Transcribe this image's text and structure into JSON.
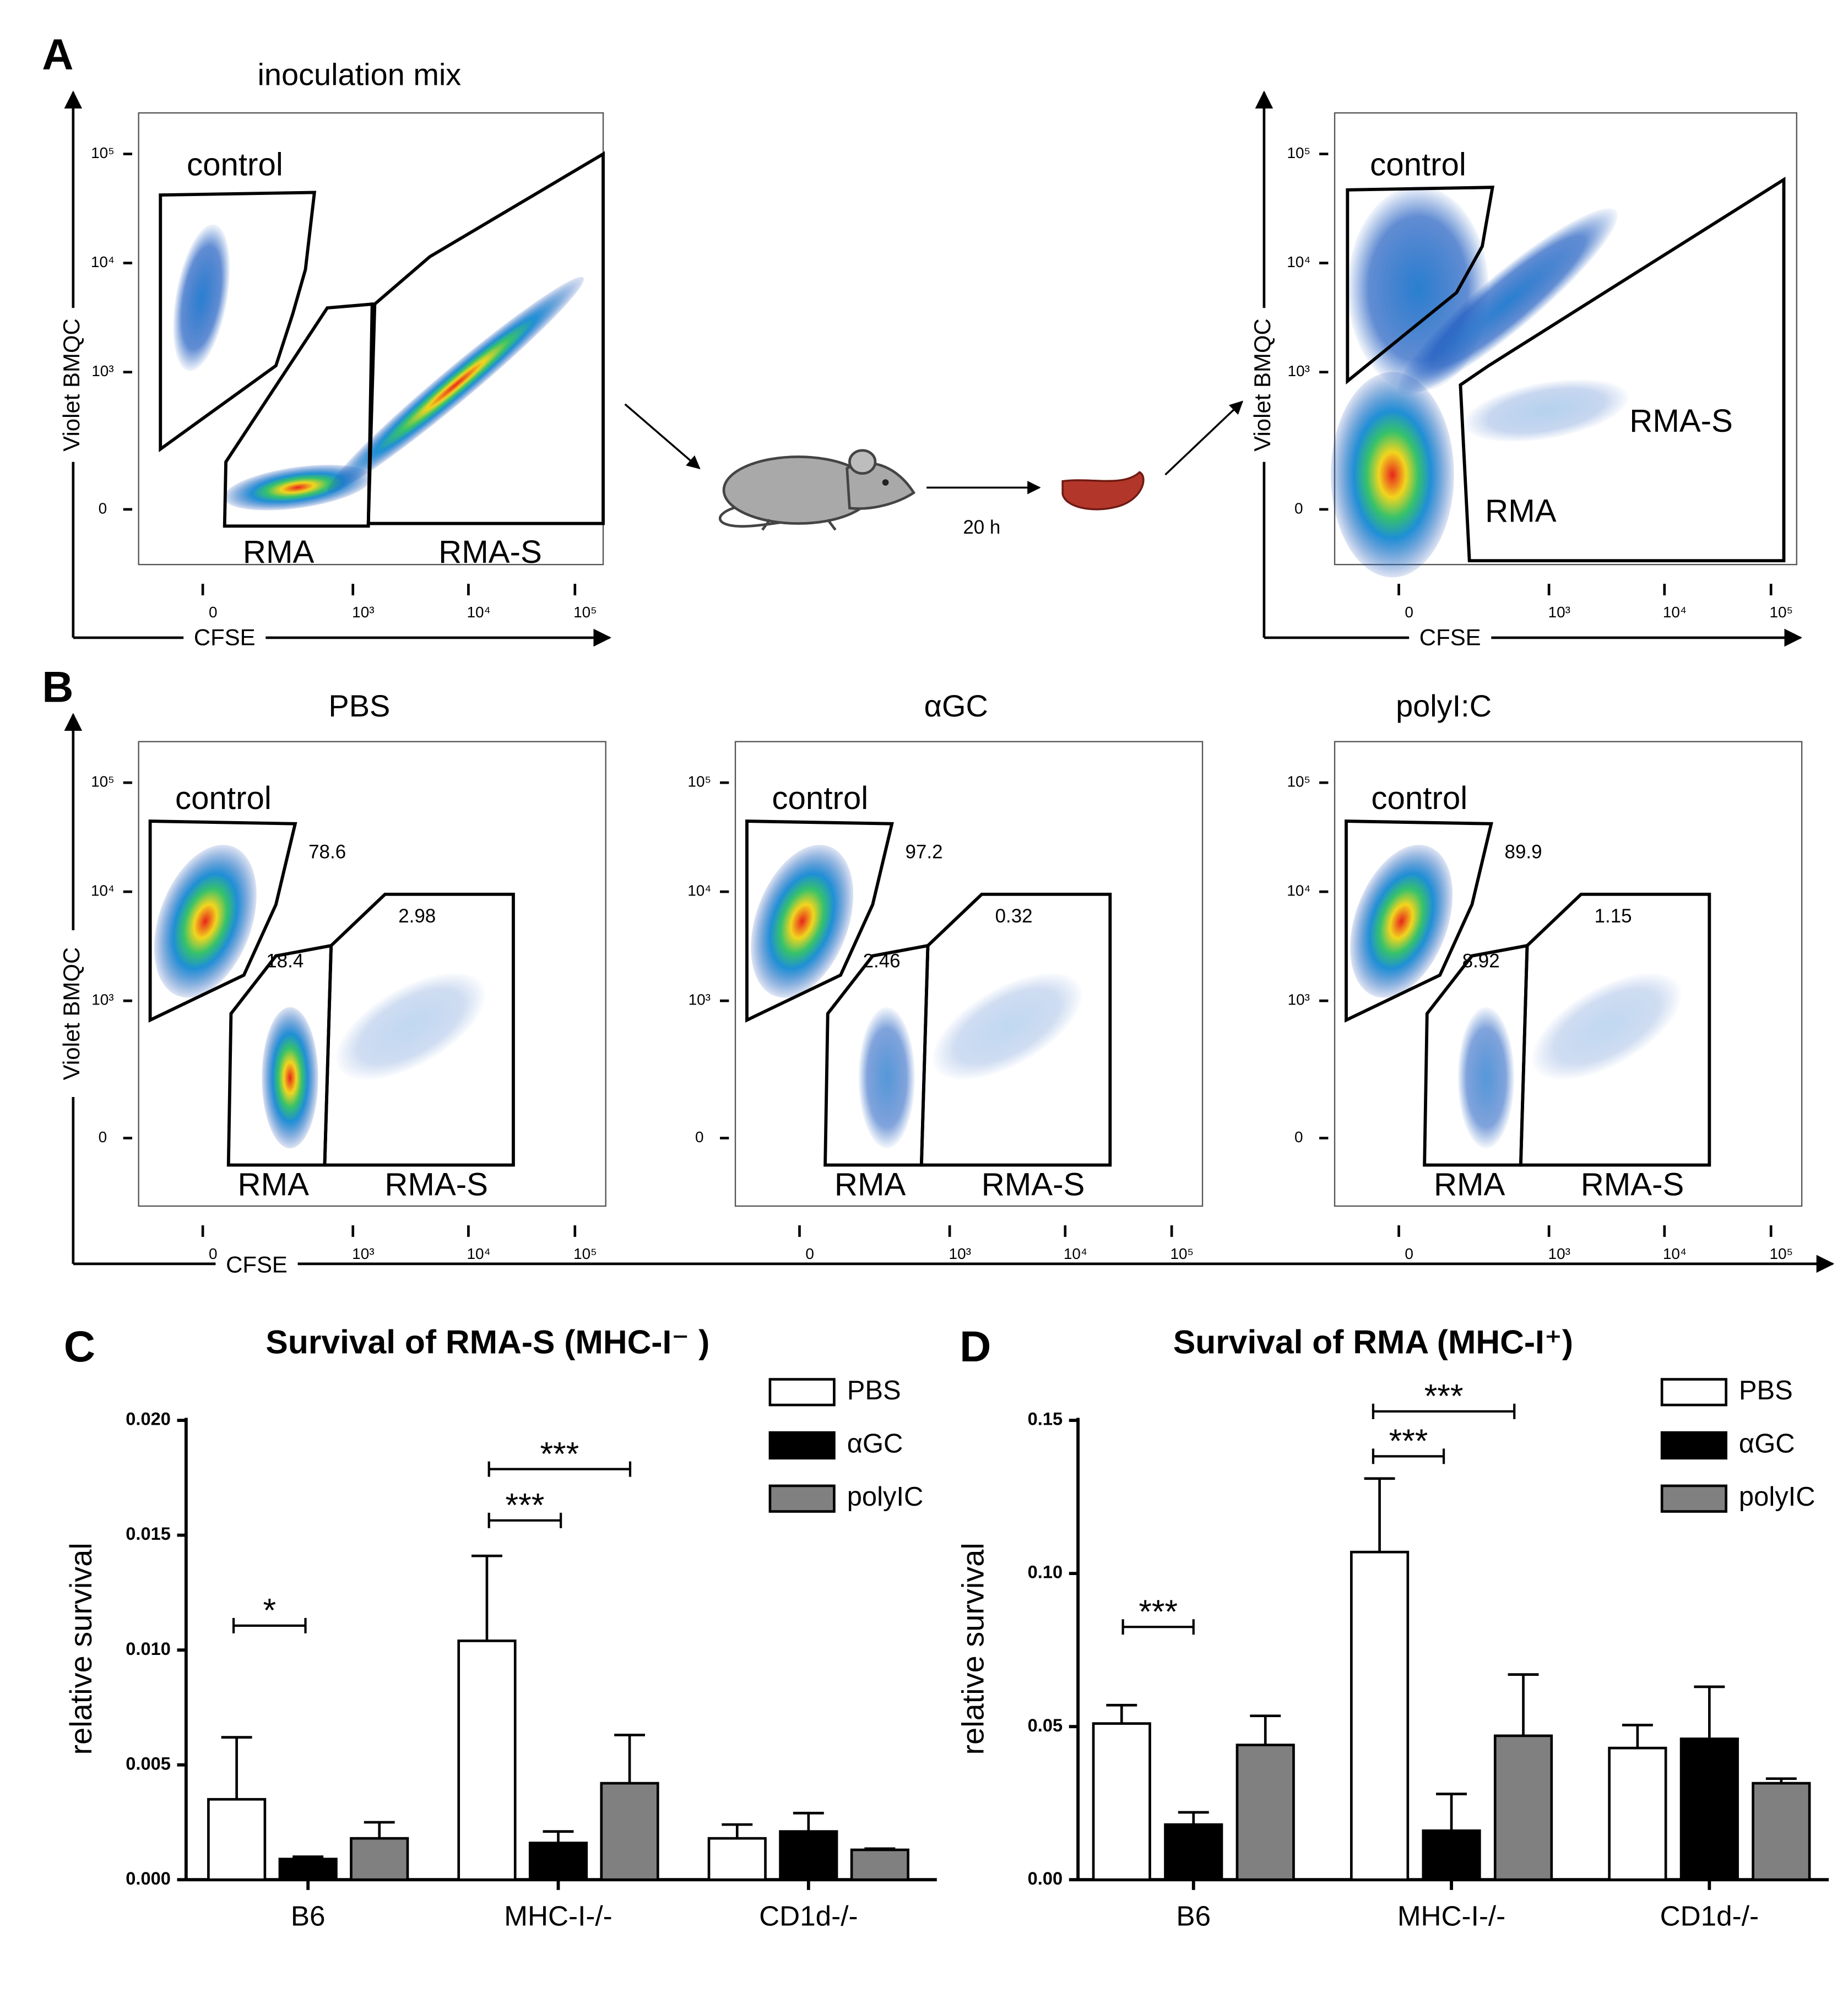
{
  "panel_a": {
    "label": "A",
    "x_axis_label": "CFSE",
    "y_axis_label": "Violet BMQC",
    "time_label": "20 h",
    "plots": [
      {
        "title": "inoculation mix",
        "gates": [
          "control",
          "RMA",
          "RMA-S"
        ],
        "x_ticks": [
          "0",
          "10³",
          "10⁴",
          "10⁵"
        ],
        "y_ticks": [
          "10⁵",
          "10⁴",
          "10³",
          "0"
        ]
      },
      {
        "gates": [
          "control",
          "RMA",
          "RMA-S"
        ],
        "x_ticks": [
          "0",
          "10³",
          "10⁴",
          "10⁵"
        ],
        "y_ticks": [
          "10⁵",
          "10⁴",
          "10³",
          "0"
        ]
      }
    ]
  },
  "panel_b": {
    "label": "B",
    "x_axis_label": "CFSE",
    "y_axis_label": "Violet BMQC",
    "plots": [
      {
        "title": "PBS",
        "gates": [
          {
            "name": "control",
            "percent": 78.6
          },
          {
            "name": "RMA",
            "percent": 18.4
          },
          {
            "name": "RMA-S",
            "percent": 2.98
          }
        ],
        "x_ticks": [
          "0",
          "10³",
          "10⁴",
          "10⁵"
        ],
        "y_ticks": [
          "10⁵",
          "10⁴",
          "10³",
          "0"
        ]
      },
      {
        "title": "αGC",
        "gates": [
          {
            "name": "control",
            "percent": 97.2
          },
          {
            "name": "RMA",
            "percent": 2.46
          },
          {
            "name": "RMA-S",
            "percent": 0.32
          }
        ],
        "x_ticks": [
          "0",
          "10³",
          "10⁴",
          "10⁵"
        ],
        "y_ticks": [
          "10⁵",
          "10⁴",
          "10³",
          "0"
        ]
      },
      {
        "title": "polyI:C",
        "gates": [
          {
            "name": "control",
            "percent": 89.9
          },
          {
            "name": "RMA",
            "percent": 8.92
          },
          {
            "name": "RMA-S",
            "percent": 1.15
          }
        ],
        "x_ticks": [
          "0",
          "10³",
          "10⁴",
          "10⁵"
        ],
        "y_ticks": [
          "10⁵",
          "10⁴",
          "10³",
          "0"
        ]
      }
    ]
  },
  "chart_data": [
    {
      "type": "bar",
      "panel_label": "C",
      "title": "Survival of RMA-S (MHC-I⁻ )",
      "y_axis_label": "relative survival",
      "categories": [
        "B6",
        "MHC-I-/-",
        "CD1d-/-"
      ],
      "series": [
        {
          "name": "PBS",
          "color": "#ffffff",
          "values": [
            0.0035,
            0.0104,
            0.0018
          ],
          "errors": [
            0.0027,
            0.0037,
            0.0006
          ]
        },
        {
          "name": "αGC",
          "color": "#000000",
          "values": [
            0.0009,
            0.0016,
            0.0021
          ],
          "errors": [
            0.0001,
            0.0005,
            0.0008
          ]
        },
        {
          "name": "polyIC",
          "color": "#808080",
          "values": [
            0.0018,
            0.0042,
            0.0013
          ],
          "errors": [
            0.0007,
            0.0021,
            5e-05
          ]
        }
      ],
      "ylim": [
        0,
        0.02
      ],
      "yticks": [
        {
          "value": 0,
          "label": "0.000"
        },
        {
          "value": 0.005,
          "label": "0.005"
        },
        {
          "value": 0.01,
          "label": "0.010"
        },
        {
          "value": 0.015,
          "label": "0.015"
        },
        {
          "value": 0.02,
          "label": "0.020"
        }
      ],
      "annotations": [
        {
          "text": "*"
        },
        {
          "text": "***"
        },
        {
          "text": "***"
        }
      ],
      "legend": "upper right"
    },
    {
      "type": "bar",
      "panel_label": "D",
      "title": "Survival of RMA (MHC-I⁺)",
      "y_axis_label": "relative survival",
      "categories": [
        "B6",
        "MHC-I-/-",
        "CD1d-/-"
      ],
      "series": [
        {
          "name": "PBS",
          "color": "#ffffff",
          "values": [
            0.051,
            0.107,
            0.043
          ],
          "errors": [
            0.006,
            0.024,
            0.0075
          ]
        },
        {
          "name": "αGC",
          "color": "#000000",
          "values": [
            0.018,
            0.016,
            0.046
          ],
          "errors": [
            0.004,
            0.012,
            0.017
          ]
        },
        {
          "name": "polyIC",
          "color": "#808080",
          "values": [
            0.044,
            0.047,
            0.0315
          ],
          "errors": [
            0.0095,
            0.02,
            0.0015
          ]
        }
      ],
      "ylim": [
        0,
        0.15
      ],
      "yticks": [
        {
          "value": 0,
          "label": "0.00"
        },
        {
          "value": 0.05,
          "label": "0.05"
        },
        {
          "value": 0.1,
          "label": "0.10"
        },
        {
          "value": 0.15,
          "label": "0.15"
        }
      ],
      "annotations": [
        {
          "text": "***"
        },
        {
          "text": "***"
        },
        {
          "text": "***"
        }
      ],
      "legend": "upper right"
    }
  ]
}
